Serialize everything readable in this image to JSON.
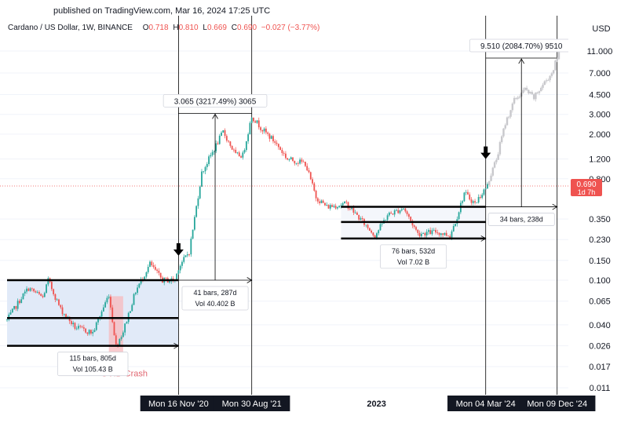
{
  "header": {
    "published": "published on TradingView.com, Mar 16, 2024 17:25 UTC",
    "symbol": "Cardano / US Dollar, 1W, BINANCE",
    "o_label": "O",
    "o_value": "0.718",
    "h_label": "H",
    "h_value": "0.810",
    "l_label": "L",
    "l_value": "0.669",
    "c_label": "C",
    "c_value": "0.690",
    "change": "−0.027 (−3.77%)"
  },
  "chart_data": {
    "type": "candlestick",
    "title": "Cardano / US Dollar, 1W, BINANCE",
    "currency": "USD",
    "y_scale": "log",
    "y_ticks": [
      "11.000",
      "7.000",
      "4.500",
      "3.000",
      "2.000",
      "1.200",
      "0.800",
      "0.350",
      "0.230",
      "0.150",
      "0.100",
      "0.065",
      "0.040",
      "0.026",
      "0.017",
      "0.011"
    ],
    "ylim": [
      0.0105,
      14
    ],
    "x_labels": [
      {
        "text": "Mon 16 Nov '20",
        "date": "2020-11-16",
        "style": "crosshair"
      },
      {
        "text": "Mon 30 Aug '21",
        "date": "2021-08-30",
        "style": "crosshair"
      },
      {
        "text": "2",
        "date": "2022-01-01",
        "style": "partial"
      },
      {
        "text": "2023",
        "date": "2023-01-01",
        "style": "plain"
      },
      {
        "text": "Mon 04 Mar '24",
        "date": "2024-03-04",
        "style": "crosshair"
      },
      {
        "text": "Mon 09 Dec '24",
        "date": "2024-12-09",
        "style": "crosshair"
      }
    ],
    "price_path": [
      [
        "2019-01-14",
        0.044
      ],
      [
        "2019-03-11",
        0.07
      ],
      [
        "2019-04-08",
        0.085
      ],
      [
        "2019-06-03",
        0.07
      ],
      [
        "2019-06-24",
        0.1
      ],
      [
        "2019-08-12",
        0.055
      ],
      [
        "2019-10-07",
        0.038
      ],
      [
        "2019-12-16",
        0.034
      ],
      [
        "2020-02-17",
        0.075
      ],
      [
        "2020-03-16",
        0.026
      ],
      [
        "2020-04-13",
        0.035
      ],
      [
        "2020-06-01",
        0.08
      ],
      [
        "2020-07-27",
        0.14
      ],
      [
        "2020-09-14",
        0.1
      ],
      [
        "2020-11-02",
        0.1
      ],
      [
        "2020-11-16",
        0.13
      ],
      [
        "2020-12-28",
        0.18
      ],
      [
        "2021-02-15",
        0.9
      ],
      [
        "2021-03-15",
        1.2
      ],
      [
        "2021-05-10",
        2.1
      ],
      [
        "2021-06-28",
        1.3
      ],
      [
        "2021-07-26",
        1.3
      ],
      [
        "2021-08-30",
        2.9
      ],
      [
        "2021-10-11",
        2.2
      ],
      [
        "2021-11-29",
        1.7
      ],
      [
        "2022-01-17",
        1.2
      ],
      [
        "2022-03-28",
        1.1
      ],
      [
        "2022-05-09",
        0.55
      ],
      [
        "2022-06-20",
        0.45
      ],
      [
        "2022-09-05",
        0.48
      ],
      [
        "2022-12-26",
        0.25
      ],
      [
        "2023-02-13",
        0.38
      ],
      [
        "2023-04-17",
        0.44
      ],
      [
        "2023-06-12",
        0.26
      ],
      [
        "2023-08-21",
        0.27
      ],
      [
        "2023-10-16",
        0.25
      ],
      [
        "2023-11-13",
        0.37
      ],
      [
        "2023-12-11",
        0.6
      ],
      [
        "2024-01-22",
        0.48
      ],
      [
        "2024-02-19",
        0.6
      ],
      [
        "2024-03-11",
        0.69
      ]
    ],
    "projection_path": [
      [
        "2024-03-11",
        0.72
      ],
      [
        "2024-04-15",
        1.2
      ],
      [
        "2024-05-20",
        2.5
      ],
      [
        "2024-06-24",
        4.0
      ],
      [
        "2024-08-05",
        5.0
      ],
      [
        "2024-09-09",
        4.2
      ],
      [
        "2024-10-14",
        5.5
      ],
      [
        "2024-11-18",
        7.0
      ],
      [
        "2024-12-16",
        10.5
      ]
    ],
    "current_price": {
      "value": "0.690",
      "label": "0.690",
      "countdown": "1d 7h",
      "y": 0.69
    },
    "zones": [
      {
        "x0": "2019-01-14",
        "x1": "2020-11-16",
        "y0": 0.026,
        "y1": 0.101,
        "color": "#e1eaf8"
      },
      {
        "x0": "2022-08-15",
        "x1": "2024-03-04",
        "y0": 0.235,
        "y1": 0.45,
        "color": "#f4f6fb"
      }
    ],
    "covid_zone": {
      "x0": "2020-02-17",
      "x1": "2020-04-13",
      "y0": 0.0175,
      "y1": 0.072,
      "label": "OVID Crash",
      "color": "#f7b9bd"
    },
    "levels": [
      {
        "x0": "2019-01-14",
        "x1": "2020-11-16",
        "y": 0.1
      },
      {
        "x0": "2019-01-14",
        "x1": "2020-11-16",
        "y": 0.046
      },
      {
        "x0": "2019-01-14",
        "x1": "2020-11-16",
        "y": 0.026
      },
      {
        "x0": "2022-08-15",
        "x1": "2024-03-04",
        "y": 0.45
      },
      {
        "x0": "2022-08-15",
        "x1": "2024-03-04",
        "y": 0.33
      },
      {
        "x0": "2022-08-15",
        "x1": "2024-03-04",
        "y": 0.235
      }
    ],
    "vertical_lines": [
      "2020-11-16",
      "2021-08-30",
      "2024-03-04",
      "2024-12-09"
    ],
    "signal_arrows": [
      {
        "date": "2020-11-16",
        "y": 0.165
      },
      {
        "date": "2024-03-04",
        "y": 1.2
      }
    ],
    "measurements": [
      {
        "type": "price_range",
        "x0": "2020-11-16",
        "x1": "2021-08-30",
        "y0": 0.1,
        "y1": 3.065,
        "label": "3.065 (3217.49%) 3065"
      },
      {
        "type": "price_range",
        "x0": "2024-03-04",
        "x1": "2024-12-09",
        "y0": 0.45,
        "y1": 9.51,
        "label": "9.510 (2084.70%) 9510"
      },
      {
        "type": "date_range",
        "x0": "2020-11-16",
        "x1": "2021-08-30",
        "y": 0.1,
        "bars": "41 bars, 287d",
        "vol": "Vol 40.402 B"
      },
      {
        "type": "date_range",
        "x0": "2024-03-04",
        "x1": "2024-12-09",
        "y": 0.45,
        "bars": "34 bars, 238d",
        "vol": ""
      },
      {
        "type": "date_range",
        "x0": "2019-01-14",
        "x1": "2020-11-16",
        "y": 0.026,
        "bars": "115 bars, 805d",
        "vol": "Vol 105.43 B"
      },
      {
        "type": "date_range",
        "x0": "2022-08-15",
        "x1": "2024-03-04",
        "y": 0.235,
        "bars": "76 bars, 532d",
        "vol": "Vol 7.02 B"
      }
    ]
  },
  "colors": {
    "up": "#26a69a",
    "down": "#ef5350",
    "projection": "#c8c8cc",
    "ohlc_value": "#ef5350",
    "price_badge": "#ef5350",
    "level": "#000000",
    "grid": "#f0f3fa",
    "axis_text": "#131722",
    "label_bg": "#131722"
  }
}
